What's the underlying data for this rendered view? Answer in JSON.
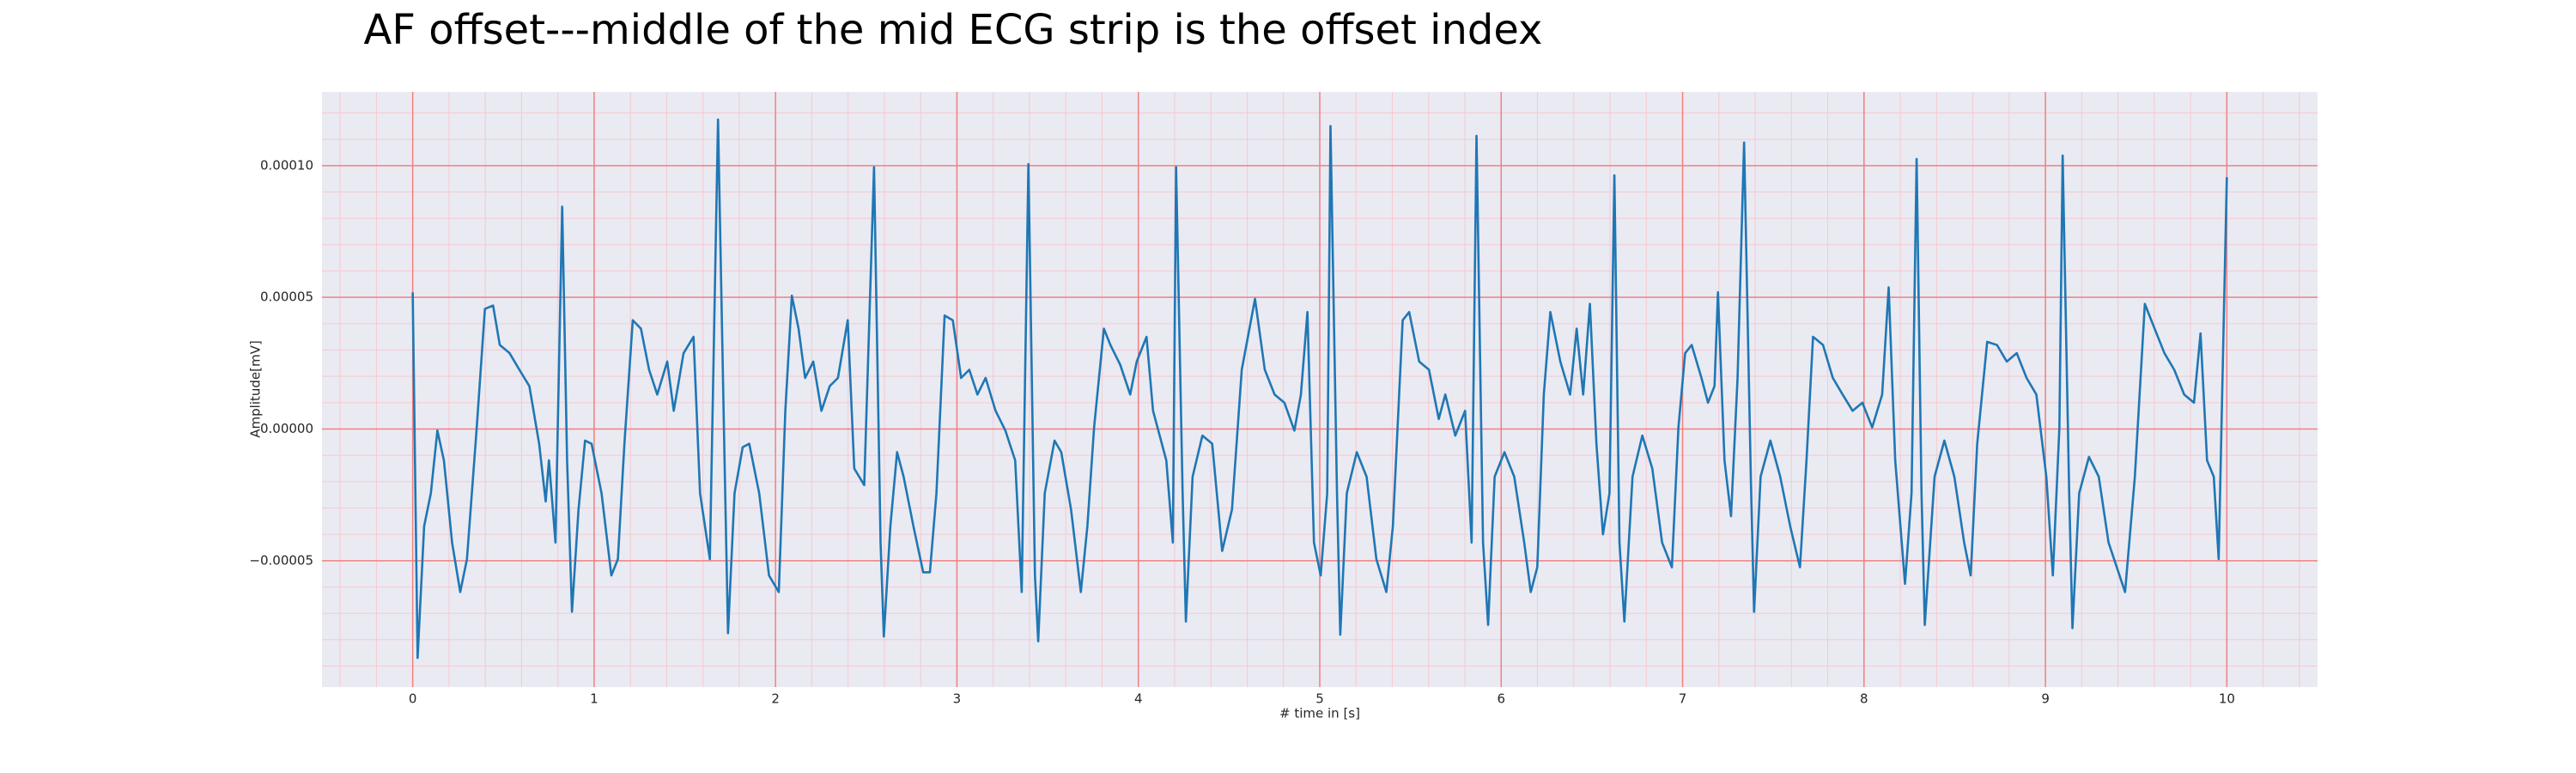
{
  "chart_data": {
    "type": "line",
    "title": "AF offset---middle of the mid ECG strip is the offset index",
    "xlabel": "# time in [s]",
    "ylabel": "Amplitude[mV]",
    "color": "#1f77b4",
    "grid": true,
    "major_grid_color": "#f08080",
    "minor_grid_color": "#f6c9d0",
    "background": "#eaeaf2",
    "xlim": [
      -0.5,
      10.5
    ],
    "ylim": [
      -9.8e-05,
      0.000128
    ],
    "xticks": [
      0,
      1,
      2,
      3,
      4,
      5,
      6,
      7,
      8,
      9,
      10
    ],
    "yticks": [
      {
        "value": -5e-05,
        "label": "−0.00005"
      },
      {
        "value": 0,
        "label": "0.00000"
      },
      {
        "value": 5e-05,
        "label": "0.00005"
      },
      {
        "value": 0.0001,
        "label": "0.00010"
      }
    ],
    "xminorticks": [
      -0.4,
      -0.2,
      0.2,
      0.4,
      0.6,
      0.8,
      1.2,
      1.4,
      1.6,
      1.8,
      2.2,
      2.4,
      2.6,
      2.8,
      3.2,
      3.4,
      3.6,
      3.8,
      4.2,
      4.4,
      4.6,
      4.8,
      5.2,
      5.4,
      5.6,
      5.8,
      6.2,
      6.4,
      6.6,
      6.8,
      7.2,
      7.4,
      7.6,
      7.8,
      8.2,
      8.4,
      8.6,
      8.8,
      9.2,
      9.4,
      9.6,
      9.8,
      10.2,
      10.4
    ],
    "yminorticks": [
      -9e-05,
      -8e-05,
      -7e-05,
      -6e-05,
      -4e-05,
      -3e-05,
      -2e-05,
      -1e-05,
      1e-05,
      2e-05,
      3e-05,
      4e-05,
      6e-05,
      7e-05,
      8e-05,
      9e-05,
      0.00011,
      0.00012
    ],
    "x": [
      0,
      0.027,
      0.063,
      0.1,
      0.136,
      0.172,
      0.217,
      0.262,
      0.299,
      0.353,
      0.398,
      0.443,
      0.48,
      0.534,
      0.588,
      0.643,
      0.697,
      0.733,
      0.751,
      0.787,
      0.805,
      0.824,
      0.851,
      0.878,
      0.914,
      0.95,
      0.986,
      1.041,
      1.095,
      1.131,
      1.167,
      1.213,
      1.258,
      1.303,
      1.348,
      1.403,
      1.439,
      1.493,
      1.548,
      1.584,
      1.638,
      1.683,
      1.719,
      1.738,
      1.774,
      1.819,
      1.855,
      1.91,
      1.964,
      2.018,
      2.054,
      2.09,
      2.127,
      2.163,
      2.208,
      2.253,
      2.299,
      2.344,
      2.398,
      2.434,
      2.489,
      2.543,
      2.579,
      2.597,
      2.633,
      2.67,
      2.706,
      2.76,
      2.814,
      2.851,
      2.887,
      2.932,
      2.977,
      3.023,
      3.068,
      3.113,
      3.158,
      3.213,
      3.267,
      3.321,
      3.357,
      3.394,
      3.43,
      3.448,
      3.484,
      3.538,
      3.575,
      3.629,
      3.683,
      3.719,
      3.756,
      3.81,
      3.846,
      3.9,
      3.955,
      3.991,
      4.045,
      4.081,
      4.154,
      4.19,
      4.208,
      4.244,
      4.262,
      4.299,
      4.353,
      4.407,
      4.462,
      4.516,
      4.57,
      4.643,
      4.697,
      4.751,
      4.805,
      4.86,
      4.896,
      4.932,
      4.968,
      5.005,
      5.041,
      5.059,
      5.095,
      5.113,
      5.149,
      5.204,
      5.258,
      5.312,
      5.367,
      5.403,
      5.457,
      5.493,
      5.548,
      5.602,
      5.656,
      5.692,
      5.747,
      5.801,
      5.837,
      5.864,
      5.9,
      5.928,
      5.964,
      6.018,
      6.072,
      6.127,
      6.163,
      6.199,
      6.235,
      6.271,
      6.326,
      6.38,
      6.416,
      6.452,
      6.489,
      6.525,
      6.561,
      6.597,
      6.624,
      6.652,
      6.679,
      6.724,
      6.778,
      6.833,
      6.887,
      6.941,
      6.977,
      7.014,
      7.05,
      7.104,
      7.14,
      7.176,
      7.195,
      7.231,
      7.267,
      7.303,
      7.339,
      7.376,
      7.394,
      7.43,
      7.484,
      7.538,
      7.593,
      7.647,
      7.683,
      7.719,
      7.774,
      7.828,
      7.882,
      7.937,
      7.991,
      8.045,
      8.1,
      8.136,
      8.172,
      8.226,
      8.262,
      8.29,
      8.317,
      8.335,
      8.389,
      8.443,
      8.498,
      8.552,
      8.588,
      8.624,
      8.679,
      8.733,
      8.787,
      8.842,
      8.896,
      8.95,
      9.005,
      9.041,
      9.077,
      9.095,
      9.131,
      9.149,
      9.186,
      9.24,
      9.294,
      9.348,
      9.439,
      9.493,
      9.548,
      9.602,
      9.656,
      9.71,
      9.765,
      9.819,
      9.855,
      9.891,
      9.928,
      9.955,
      9.982,
      10.0
    ],
    "values": [
      5.19e-05,
      -8.69e-05,
      -3.69e-05,
      -2.44e-05,
      -6e-07,
      -1.19e-05,
      -4.31e-05,
      -6.19e-05,
      -4.94e-05,
      6e-07,
      4.56e-05,
      4.69e-05,
      3.19e-05,
      2.88e-05,
      2.25e-05,
      1.63e-05,
      -5.6e-06,
      -2.75e-05,
      -1.19e-05,
      -4.31e-05,
      1.94e-05,
      8.44e-05,
      -1.19e-05,
      -6.94e-05,
      -3.06e-05,
      -4.4e-06,
      -5.6e-06,
      -2.44e-05,
      -5.56e-05,
      -4.94e-05,
      -5.6e-06,
      4.13e-05,
      3.81e-05,
      2.25e-05,
      1.31e-05,
      2.56e-05,
      6.9e-06,
      2.88e-05,
      3.5e-05,
      -2.44e-05,
      -4.94e-05,
      0.0001175,
      -1.19e-05,
      -7.75e-05,
      -2.44e-05,
      -6.9e-06,
      -5.6e-06,
      -2.44e-05,
      -5.56e-05,
      -6.19e-05,
      6.9e-06,
      5.06e-05,
      3.81e-05,
      1.94e-05,
      2.56e-05,
      6.9e-06,
      1.63e-05,
      1.94e-05,
      4.13e-05,
      -1.5e-05,
      -2.13e-05,
      9.94e-05,
      -4.31e-05,
      -7.88e-05,
      -3.69e-05,
      -8.8e-06,
      -1.81e-05,
      -3.69e-05,
      -5.44e-05,
      -5.44e-05,
      -2.44e-05,
      4.31e-05,
      4.13e-05,
      1.94e-05,
      2.25e-05,
      1.31e-05,
      1.94e-05,
      6.9e-06,
      -6e-07,
      -1.19e-05,
      -6.19e-05,
      0.0001006,
      -5.56e-05,
      -8.06e-05,
      -2.44e-05,
      -4.4e-06,
      -8.8e-06,
      -3.06e-05,
      -6.19e-05,
      -3.69e-05,
      6e-07,
      3.81e-05,
      3.19e-05,
      2.44e-05,
      1.31e-05,
      2.56e-05,
      3.5e-05,
      6.9e-06,
      -1.19e-05,
      -4.31e-05,
      9.94e-05,
      -2.44e-05,
      -7.31e-05,
      -1.81e-05,
      -2.5e-06,
      -5.6e-06,
      -4.63e-05,
      -3.06e-05,
      2.25e-05,
      4.94e-05,
      2.25e-05,
      1.31e-05,
      1e-05,
      -6e-07,
      1.31e-05,
      4.44e-05,
      -4.31e-05,
      -5.56e-05,
      -2.44e-05,
      0.000115,
      -2.44e-05,
      -7.81e-05,
      -2.44e-05,
      -8.8e-06,
      -1.81e-05,
      -4.94e-05,
      -6.19e-05,
      -3.69e-05,
      4.13e-05,
      4.44e-05,
      2.56e-05,
      2.25e-05,
      3.8e-06,
      1.31e-05,
      -2.5e-06,
      6.9e-06,
      -4.31e-05,
      0.0001113,
      -4.31e-05,
      -7.44e-05,
      -1.81e-05,
      -8.8e-06,
      -1.81e-05,
      -4.31e-05,
      -6.19e-05,
      -5.25e-05,
      1.31e-05,
      4.44e-05,
      2.56e-05,
      1.31e-05,
      3.81e-05,
      1.31e-05,
      4.75e-05,
      -5.6e-06,
      -4e-05,
      -2.44e-05,
      9.63e-05,
      -4.31e-05,
      -7.31e-05,
      -1.81e-05,
      -2.5e-06,
      -1.5e-05,
      -4.31e-05,
      -5.25e-05,
      6e-07,
      2.88e-05,
      3.19e-05,
      1.94e-05,
      1e-05,
      1.63e-05,
      5.19e-05,
      -1.19e-05,
      -3.31e-05,
      1.94e-05,
      0.0001088,
      -1.81e-05,
      -6.94e-05,
      -1.81e-05,
      -4.4e-06,
      -1.81e-05,
      -3.69e-05,
      -5.25e-05,
      -1.19e-05,
      3.5e-05,
      3.19e-05,
      1.94e-05,
      1.31e-05,
      6.9e-06,
      1e-05,
      6e-07,
      1.31e-05,
      5.38e-05,
      -1.19e-05,
      -5.88e-05,
      -2.44e-05,
      0.0001025,
      -2.44e-05,
      -7.44e-05,
      -1.81e-05,
      -4.4e-06,
      -1.81e-05,
      -4.31e-05,
      -5.56e-05,
      -5.6e-06,
      3.31e-05,
      3.19e-05,
      2.56e-05,
      2.88e-05,
      1.94e-05,
      1.31e-05,
      -1.81e-05,
      -5.56e-05,
      6e-07,
      0.0001038,
      -2.44e-05,
      -7.56e-05,
      -2.44e-05,
      -1.06e-05,
      -1.81e-05,
      -4.31e-05,
      -6.19e-05,
      -1.81e-05,
      4.75e-05,
      3.81e-05,
      2.88e-05,
      2.25e-05,
      1.31e-05,
      1e-05,
      3.63e-05,
      -1.19e-05,
      -1.81e-05,
      -4.94e-05,
      3.81e-05,
      9.56e-05
    ]
  }
}
